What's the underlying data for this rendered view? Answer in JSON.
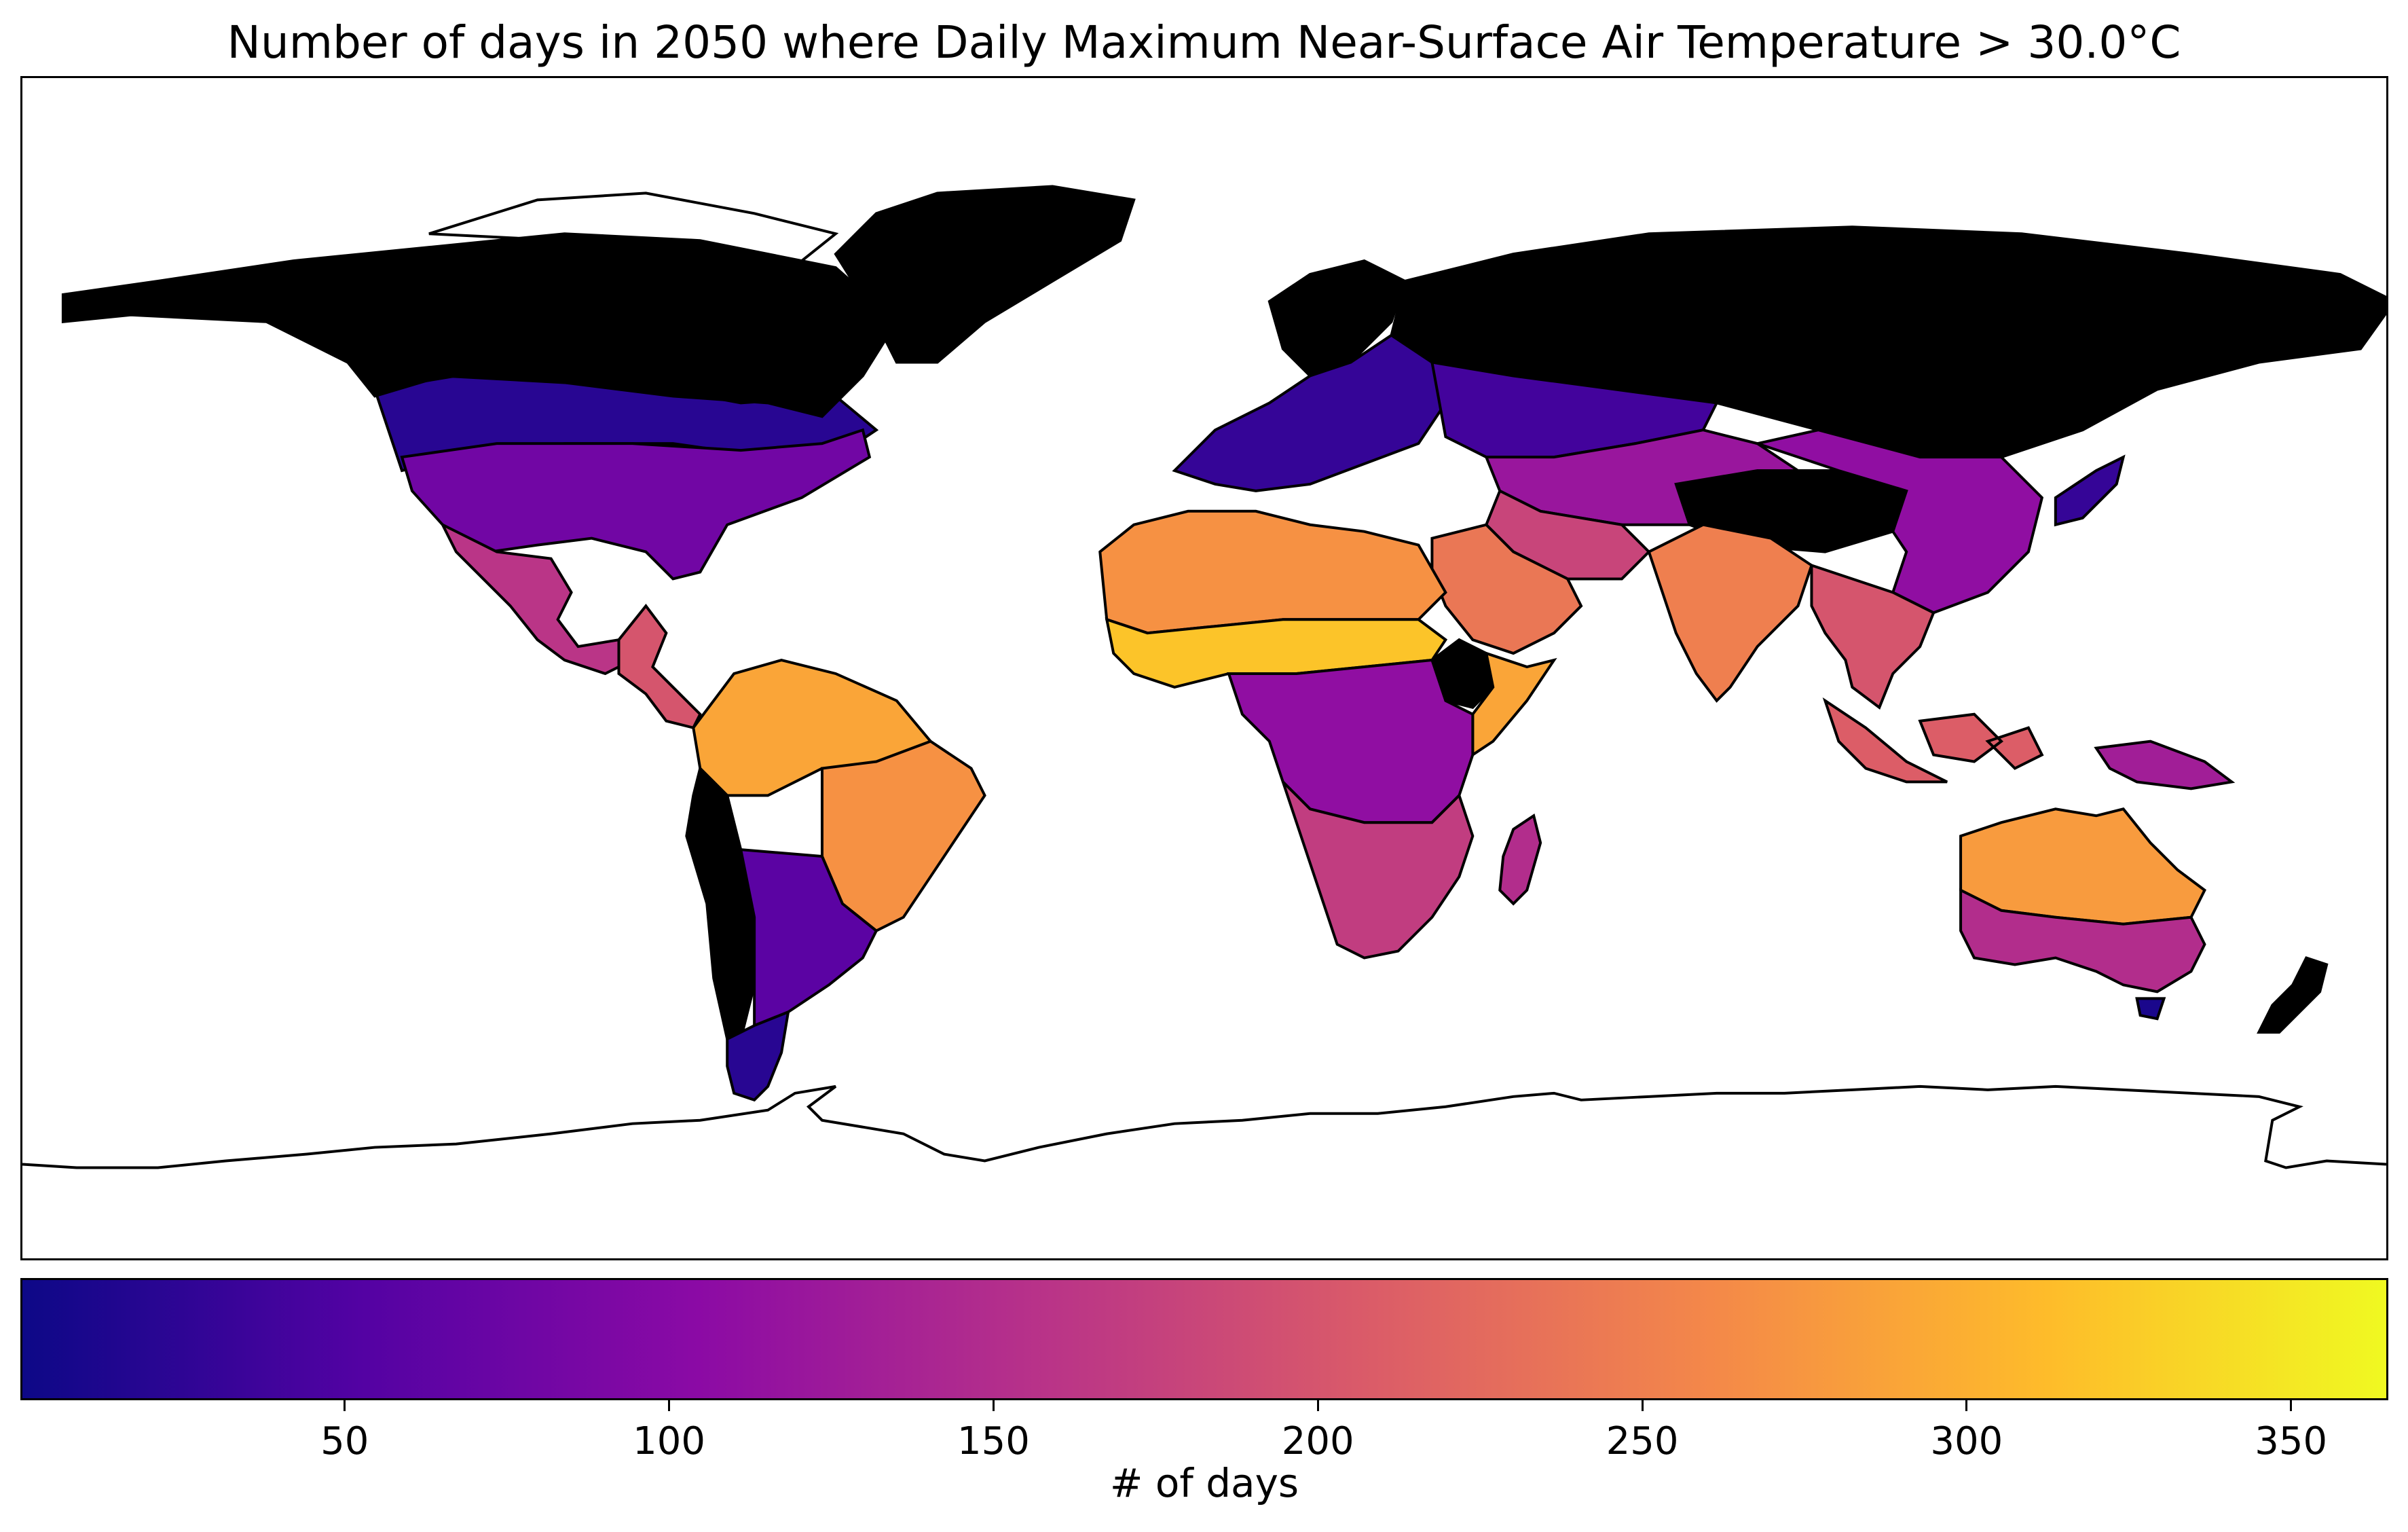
{
  "title": "Number of days in 2050 where Daily Maximum Near-Surface Air Temperature > 30.0°C",
  "map": {
    "projection": "Plate Carrée",
    "variable": "Daily Maximum Near-Surface Air Temperature",
    "threshold_c": 30.0,
    "year": 2050,
    "ocean_color": "#ffffff",
    "coastline_color": "#000000",
    "zero_days_color": "#000000"
  },
  "colorbar": {
    "colormap": "plasma",
    "min": 0,
    "max": 365,
    "label": "# of days",
    "ticks": [
      {
        "value": 50,
        "label": "50"
      },
      {
        "value": 100,
        "label": "100"
      },
      {
        "value": 150,
        "label": "150"
      },
      {
        "value": 200,
        "label": "200"
      },
      {
        "value": 250,
        "label": "250"
      },
      {
        "value": 300,
        "label": "300"
      },
      {
        "value": 350,
        "label": "350"
      }
    ],
    "stops": [
      "#0d0887",
      "#5302a3",
      "#8b0aa5",
      "#b83289",
      "#db5c68",
      "#f48849",
      "#febc2a",
      "#f0f921"
    ]
  },
  "regions": [
    {
      "name": "Greenland",
      "days": 0
    },
    {
      "name": "Northern Canada",
      "days": 0
    },
    {
      "name": "Siberia",
      "days": 0
    },
    {
      "name": "Scandinavia",
      "days": 0
    },
    {
      "name": "Tibetan Plateau",
      "days": 0
    },
    {
      "name": "Canada south",
      "days": 20
    },
    {
      "name": "United States",
      "days": 80
    },
    {
      "name": "Mexico",
      "days": 160
    },
    {
      "name": "Central America",
      "days": 200
    },
    {
      "name": "Amazon",
      "days": 290
    },
    {
      "name": "Brazil east",
      "days": 270
    },
    {
      "name": "Andes",
      "days": 0
    },
    {
      "name": "Southern South America",
      "days": 60
    },
    {
      "name": "Patagonia",
      "days": 20
    },
    {
      "name": "Europe",
      "days": 30
    },
    {
      "name": "Russia south",
      "days": 40
    },
    {
      "name": "Central Asia",
      "days": 120
    },
    {
      "name": "Sahara",
      "days": 270
    },
    {
      "name": "Sahel",
      "days": 320
    },
    {
      "name": "Horn of Africa",
      "days": 290
    },
    {
      "name": "Ethiopian Highlands",
      "days": 0
    },
    {
      "name": "Central Africa",
      "days": 110
    },
    {
      "name": "Southern Africa",
      "days": 170
    },
    {
      "name": "Madagascar",
      "days": 150
    },
    {
      "name": "Arabian Peninsula",
      "days": 240
    },
    {
      "name": "Iran",
      "days": 180
    },
    {
      "name": "India",
      "days": 250
    },
    {
      "name": "China east",
      "days": 110
    },
    {
      "name": "Southeast Asia",
      "days": 200
    },
    {
      "name": "Indonesia",
      "days": 210
    },
    {
      "name": "New Guinea",
      "days": 130
    },
    {
      "name": "Japan",
      "days": 30
    },
    {
      "name": "Australia north",
      "days": 280
    },
    {
      "name": "Australia south",
      "days": 150
    },
    {
      "name": "Tasmania",
      "days": 10
    },
    {
      "name": "New Zealand",
      "days": 0
    },
    {
      "name": "Antarctica",
      "days": null
    }
  ]
}
